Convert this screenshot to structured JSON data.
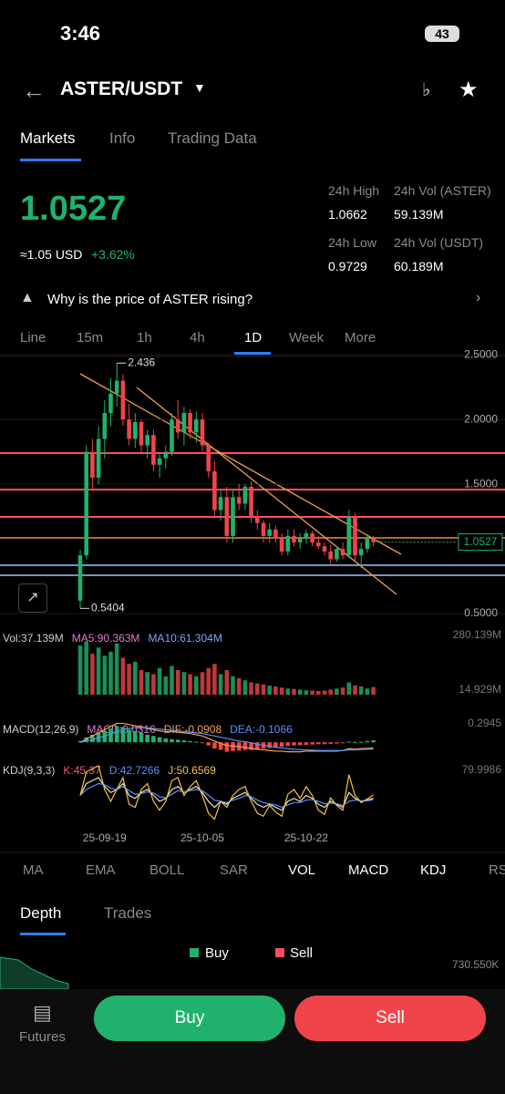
{
  "status_bar": {
    "time": "3:46",
    "battery": "43"
  },
  "header": {
    "pair": "ASTER/USDT"
  },
  "tabs": [
    "Markets",
    "Info",
    "Trading Data"
  ],
  "price": {
    "approx_usd": "≈1.05 USD",
    "change": "+3.62%"
  },
  "stats": [
    {
      "label": "24h High",
      "value": "1.0662"
    },
    {
      "label": "24h Vol (ASTER)",
      "value": "59.139M"
    },
    {
      "label": "24h Low",
      "value": "0.9729"
    },
    {
      "label": "24h Vol  (USDT)",
      "value": "60.189M"
    }
  ],
  "banner": "Why is the price of ASTER rising?",
  "intervals": [
    "Line",
    "15m",
    "1h",
    "4h",
    "1D",
    "Week",
    "More"
  ],
  "chart": {
    "type": "candlestick",
    "up_color": "#20b26c",
    "down_color": "#ef454a",
    "ylim": [
      0.43,
      2.48
    ],
    "yticks": [
      {
        "value": 2.5,
        "label": "2.5000"
      },
      {
        "value": 2.0,
        "label": "2.0000"
      },
      {
        "value": 1.5,
        "label": "1.5000"
      },
      {
        "value": 0.5,
        "label": "0.5000"
      }
    ],
    "candles": [
      [
        0.6,
        0.99,
        0.5404,
        0.95
      ],
      [
        0.95,
        1.8,
        0.92,
        1.75
      ],
      [
        1.75,
        1.85,
        1.45,
        1.55
      ],
      [
        1.55,
        1.95,
        1.5,
        1.85
      ],
      [
        1.85,
        2.15,
        1.7,
        2.05
      ],
      [
        2.05,
        2.32,
        1.95,
        2.2
      ],
      [
        2.2,
        2.436,
        2.1,
        2.3
      ],
      [
        2.3,
        2.35,
        1.95,
        2.0
      ],
      [
        2.0,
        2.12,
        1.8,
        1.85
      ],
      [
        1.85,
        2.05,
        1.78,
        1.98
      ],
      [
        1.98,
        2.0,
        1.75,
        1.8
      ],
      [
        1.8,
        1.92,
        1.7,
        1.88
      ],
      [
        1.88,
        1.92,
        1.6,
        1.65
      ],
      [
        1.65,
        1.75,
        1.55,
        1.7
      ],
      [
        1.7,
        1.8,
        1.62,
        1.75
      ],
      [
        1.75,
        2.05,
        1.72,
        2.0
      ],
      [
        2.0,
        2.15,
        1.85,
        1.9
      ],
      [
        1.9,
        2.1,
        1.8,
        2.05
      ],
      [
        2.05,
        2.08,
        1.85,
        1.9
      ],
      [
        1.9,
        2.06,
        1.82,
        2.0
      ],
      [
        2.0,
        2.05,
        1.75,
        1.8
      ],
      [
        1.8,
        1.82,
        1.55,
        1.6
      ],
      [
        1.6,
        1.68,
        1.25,
        1.3
      ],
      [
        1.3,
        1.45,
        1.22,
        1.4
      ],
      [
        1.4,
        1.48,
        1.05,
        1.1
      ],
      [
        1.1,
        1.45,
        1.05,
        1.4
      ],
      [
        1.4,
        1.5,
        1.3,
        1.35
      ],
      [
        1.35,
        1.5,
        1.3,
        1.48
      ],
      [
        1.48,
        1.52,
        1.2,
        1.25
      ],
      [
        1.25,
        1.3,
        1.15,
        1.2
      ],
      [
        1.2,
        1.22,
        1.05,
        1.1
      ],
      [
        1.1,
        1.2,
        1.05,
        1.15
      ],
      [
        1.15,
        1.18,
        1.05,
        1.08
      ],
      [
        1.08,
        1.12,
        0.95,
        0.98
      ],
      [
        0.98,
        1.15,
        0.95,
        1.1
      ],
      [
        1.1,
        1.15,
        1.02,
        1.05
      ],
      [
        1.05,
        1.12,
        1.0,
        1.08
      ],
      [
        1.08,
        1.15,
        1.04,
        1.12
      ],
      [
        1.12,
        1.14,
        1.02,
        1.05
      ],
      [
        1.05,
        1.1,
        1.0,
        1.02
      ],
      [
        1.02,
        1.05,
        0.95,
        0.98
      ],
      [
        0.98,
        1.03,
        0.88,
        0.92
      ],
      [
        0.92,
        1.02,
        0.9,
        1.0
      ],
      [
        1.0,
        1.05,
        0.92,
        0.95
      ],
      [
        0.95,
        1.3,
        0.93,
        1.25
      ],
      [
        1.25,
        1.28,
        0.9,
        0.95
      ],
      [
        0.95,
        1.05,
        0.85,
        1.0
      ],
      [
        1.0,
        1.1,
        0.97,
        1.08
      ],
      [
        1.08,
        1.1,
        1.02,
        1.0527
      ]
    ],
    "dates": [
      null,
      null,
      null,
      null,
      "25-09-19",
      null,
      null,
      null,
      null,
      null,
      null,
      null,
      null,
      null,
      null,
      null,
      null,
      null,
      null,
      null,
      "25-10-05",
      null,
      null,
      null,
      null,
      null,
      null,
      null,
      null,
      null,
      null,
      null,
      null,
      null,
      null,
      null,
      null,
      "25-10-22",
      null,
      null,
      null,
      null,
      null,
      null,
      null,
      null,
      null,
      null,
      null
    ],
    "volume": {
      "legend": [
        {
          "text": "Vol:37.139M",
          "color": "#cfcfcf"
        },
        {
          "text": "MA5:90.363M",
          "color": "#e07bd0"
        },
        {
          "text": "MA10:61.304M",
          "color": "#7ea6f5"
        }
      ],
      "ylim": [
        0,
        280.139
      ],
      "yticks": [
        {
          "value": 280.139,
          "label": "280.139M"
        },
        {
          "value": 14.929,
          "label": "14.929M"
        }
      ],
      "values": [
        240,
        260,
        200,
        230,
        190,
        210,
        250,
        180,
        150,
        160,
        120,
        110,
        100,
        130,
        90,
        140,
        120,
        110,
        100,
        90,
        110,
        130,
        150,
        100,
        120,
        90,
        80,
        70,
        60,
        55,
        50,
        45,
        40,
        35,
        30,
        28,
        25,
        22,
        20,
        18,
        20,
        25,
        30,
        35,
        60,
        45,
        40,
        30,
        37.139
      ]
    },
    "macd": {
      "legend": [
        {
          "text": "MACD(12,26,9)",
          "color": "#cfcfcf"
        },
        {
          "text": "MACD:0.0316",
          "color": "#e07bd0"
        },
        {
          "text": "DIF:-0.0908",
          "color": "#f5a34a"
        },
        {
          "text": "DEA:-0.1066",
          "color": "#5b8ff9"
        }
      ],
      "ylim": [
        -0.3,
        0.35
      ],
      "yticks": [
        0.2945
      ],
      "histogram": [
        0.02,
        0.08,
        0.12,
        0.15,
        0.18,
        0.22,
        0.25,
        0.24,
        0.2,
        0.18,
        0.15,
        0.12,
        0.1,
        0.08,
        0.06,
        0.05,
        0.04,
        0.03,
        0.02,
        0.01,
        -0.01,
        -0.05,
        -0.1,
        -0.12,
        -0.15,
        -0.14,
        -0.13,
        -0.12,
        -0.12,
        -0.11,
        -0.1,
        -0.09,
        -0.08,
        -0.07,
        -0.06,
        -0.05,
        -0.045,
        -0.04,
        -0.035,
        -0.03,
        -0.03,
        -0.025,
        -0.02,
        -0.01,
        0.01,
        0.005,
        0.01,
        0.02,
        0.0316
      ],
      "series": [
        {
          "name": "DIF",
          "color": "#f5a34a",
          "values": [
            0,
            0.05,
            0.1,
            0.15,
            0.2,
            0.25,
            0.3,
            0.3,
            0.28,
            0.26,
            0.24,
            0.22,
            0.2,
            0.18,
            0.17,
            0.17,
            0.16,
            0.15,
            0.14,
            0.12,
            0.1,
            0.06,
            0.02,
            -0.02,
            -0.05,
            -0.06,
            -0.07,
            -0.08,
            -0.1,
            -0.11,
            -0.12,
            -0.13,
            -0.14,
            -0.14,
            -0.15,
            -0.15,
            -0.15,
            -0.14,
            -0.14,
            -0.14,
            -0.14,
            -0.14,
            -0.14,
            -0.13,
            -0.1,
            -0.11,
            -0.1,
            -0.095,
            -0.0908
          ]
        },
        {
          "name": "DEA",
          "color": "#5b8ff9",
          "values": [
            0,
            0.02,
            0.04,
            0.07,
            0.1,
            0.13,
            0.17,
            0.2,
            0.22,
            0.23,
            0.23,
            0.23,
            0.22,
            0.21,
            0.2,
            0.19,
            0.18,
            0.17,
            0.16,
            0.15,
            0.14,
            0.12,
            0.1,
            0.08,
            0.06,
            0.04,
            0.02,
            0.01,
            -0.01,
            -0.03,
            -0.05,
            -0.06,
            -0.08,
            -0.09,
            -0.1,
            -0.11,
            -0.115,
            -0.12,
            -0.125,
            -0.13,
            -0.13,
            -0.13,
            -0.13,
            -0.13,
            -0.12,
            -0.12,
            -0.115,
            -0.11,
            -0.1066
          ]
        }
      ]
    },
    "kdj": {
      "legend": [
        {
          "text": "KDJ(9,3,3)",
          "color": "#cfcfcf"
        },
        {
          "text": "K:45.37",
          "color": "#f45a6d"
        },
        {
          "text": "D:42.7266",
          "color": "#5b8ff9"
        },
        {
          "text": "J:50.6569",
          "color": "#f5c342"
        }
      ],
      "ylim": [
        0,
        100
      ],
      "yticks": [
        79.9986
      ],
      "series": [
        {
          "name": "K",
          "color": "#f0e6c8",
          "values": [
            50,
            70,
            75,
            80,
            65,
            55,
            60,
            70,
            50,
            45,
            55,
            60,
            50,
            40,
            45,
            60,
            65,
            55,
            60,
            65,
            55,
            40,
            30,
            40,
            35,
            45,
            50,
            55,
            45,
            35,
            30,
            35,
            30,
            25,
            40,
            45,
            40,
            50,
            45,
            35,
            30,
            40,
            35,
            30,
            55,
            45,
            40,
            42,
            45.37
          ]
        },
        {
          "name": "D",
          "color": "#5b8ff9",
          "values": [
            50,
            60,
            65,
            70,
            68,
            62,
            60,
            65,
            58,
            52,
            53,
            56,
            54,
            48,
            46,
            52,
            58,
            56,
            58,
            60,
            58,
            50,
            42,
            40,
            38,
            42,
            45,
            50,
            48,
            42,
            38,
            36,
            34,
            30,
            34,
            38,
            38,
            42,
            43,
            40,
            36,
            37,
            36,
            33,
            40,
            42,
            41,
            41,
            42.7266
          ]
        },
        {
          "name": "J",
          "color": "#f5c342",
          "values": [
            50,
            90,
            95,
            100,
            60,
            40,
            60,
            80,
            35,
            30,
            60,
            70,
            40,
            25,
            40,
            75,
            80,
            50,
            65,
            75,
            50,
            20,
            10,
            40,
            30,
            50,
            60,
            65,
            40,
            20,
            15,
            33,
            22,
            15,
            52,
            60,
            45,
            65,
            50,
            25,
            18,
            46,
            33,
            25,
            85,
            50,
            38,
            44,
            50.6569
          ]
        }
      ]
    }
  },
  "indicators": [
    "MA",
    "EMA",
    "BOLL",
    "SAR",
    "VOL",
    "MACD",
    "KDJ",
    "RS"
  ],
  "depth": {
    "tabs": [
      "Depth",
      "Trades"
    ],
    "legend": [
      "Buy",
      "Sell"
    ],
    "axis_label": "730.550K"
  },
  "bottom": {
    "futures": "Futures",
    "buy": "Buy",
    "sell": "Sell"
  }
}
